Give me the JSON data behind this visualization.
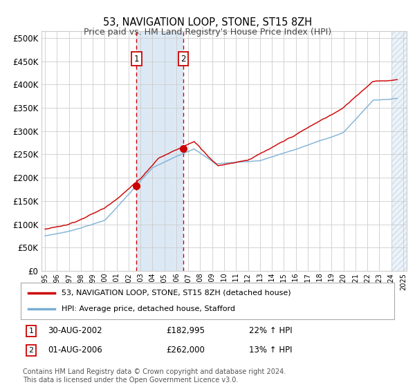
{
  "title": "53, NAVIGATION LOOP, STONE, ST15 8ZH",
  "subtitle": "Price paid vs. HM Land Registry's House Price Index (HPI)",
  "ytick_values": [
    0,
    50000,
    100000,
    150000,
    200000,
    250000,
    300000,
    350000,
    400000,
    450000,
    500000
  ],
  "ylim": [
    0,
    515000
  ],
  "xlim_start": 1994.7,
  "xlim_end": 2025.3,
  "purchase1": {
    "date_num": 2002.667,
    "price": 182995,
    "label": "1"
  },
  "purchase2": {
    "date_num": 2006.583,
    "price": 262000,
    "label": "2"
  },
  "legend_property": "53, NAVIGATION LOOP, STONE, ST15 8ZH (detached house)",
  "legend_hpi": "HPI: Average price, detached house, Stafford",
  "property_color": "#cc0000",
  "hpi_color": "#7aaed4",
  "shading_color": "#dce9f5",
  "grid_color": "#cccccc",
  "background_color": "#ffffff",
  "hatch_start": 2024.0
}
